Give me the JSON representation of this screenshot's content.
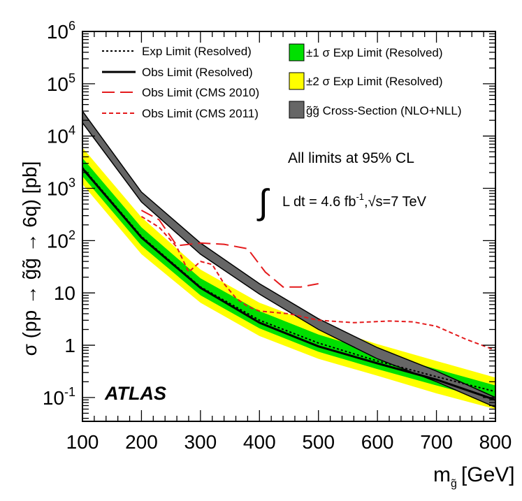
{
  "chart_data": {
    "type": "line",
    "x_label": "m",
    "x_label_sub": "g̃",
    "x_label_unit": "[GeV]",
    "y_label": "σ (pp → g̃g̃ → 6q) [pb]",
    "x_ticks": [
      "100",
      "200",
      "300",
      "400",
      "500",
      "600",
      "700",
      "800"
    ],
    "y_ticks": [
      {
        "base": "10",
        "exp": "-1",
        "value": 0.1
      },
      {
        "base": "1",
        "exp": "",
        "value": 1
      },
      {
        "base": "10",
        "exp": "",
        "value": 10
      },
      {
        "base": "10",
        "exp": "2",
        "value": 100
      },
      {
        "base": "10",
        "exp": "3",
        "value": 1000
      },
      {
        "base": "10",
        "exp": "4",
        "value": 10000
      },
      {
        "base": "10",
        "exp": "5",
        "value": 100000
      },
      {
        "base": "10",
        "exp": "6",
        "value": 1000000
      }
    ],
    "xlim": [
      100,
      800
    ],
    "ylim": [
      0.035,
      1000000
    ],
    "y_scale": "log",
    "legend_left": [
      {
        "label": "Exp Limit (Resolved)",
        "style": "dotted",
        "color": "#000000"
      },
      {
        "label": "Obs Limit (Resolved)",
        "style": "solid",
        "color": "#000000"
      },
      {
        "label": "Obs Limit (CMS 2010)",
        "style": "longdash",
        "color": "#e41a1c"
      },
      {
        "label": "Obs Limit (CMS 2011)",
        "style": "shortdash",
        "color": "#e41a1c"
      }
    ],
    "legend_right": [
      {
        "label": "±1 σ Exp Limit (Resolved)",
        "color": "#00e000"
      },
      {
        "label": "±2 σ Exp Limit (Resolved)",
        "color": "#ffff00"
      },
      {
        "label": "g̃g̃ Cross-Section (NLO+NLL)",
        "color": "#666666"
      }
    ],
    "annotations": {
      "cl": "All limits at 95% CL",
      "lumi_int": "∫",
      "lumi": "L dt = 4.6 fb",
      "lumi_exp": "-1",
      "sqrt_s_pre": ",",
      "sqrt_s": "√s=7 TeV",
      "experiment": "ATLAS"
    },
    "series": [
      {
        "name": "Exp Limit (Resolved)",
        "x": [
          100,
          200,
          300,
          400,
          500,
          600,
          700,
          800
        ],
        "y": [
          2500,
          120,
          13,
          3,
          1.1,
          0.5,
          0.25,
          0.13
        ]
      },
      {
        "name": "Obs Limit (Resolved)",
        "x": [
          100,
          200,
          300,
          400,
          500,
          600,
          700,
          800
        ],
        "y": [
          2400,
          115,
          12.5,
          2.7,
          0.95,
          0.45,
          0.22,
          0.09
        ]
      },
      {
        "name": "±1 σ Exp Limit (Resolved)",
        "x": [
          100,
          200,
          300,
          400,
          500,
          600,
          700,
          800
        ],
        "low": [
          1700,
          80,
          9,
          2.1,
          0.75,
          0.35,
          0.17,
          0.085
        ],
        "high": [
          3800,
          180,
          19,
          4.5,
          1.6,
          0.72,
          0.35,
          0.17
        ]
      },
      {
        "name": "±2 σ Exp Limit (Resolved)",
        "x": [
          100,
          200,
          300,
          400,
          500,
          600,
          700,
          800
        ],
        "low": [
          1200,
          55,
          6.5,
          1.5,
          0.55,
          0.26,
          0.12,
          0.06
        ],
        "high": [
          6000,
          280,
          28,
          6.5,
          2.4,
          1.05,
          0.5,
          0.24
        ]
      },
      {
        "name": "g̃g̃ Cross-Section (NLO+NLL)",
        "x": [
          100,
          200,
          300,
          400,
          500,
          600,
          700,
          800
        ],
        "low": [
          18000,
          550,
          55,
          9.5,
          2.0,
          0.55,
          0.2,
          0.065
        ],
        "high": [
          30000,
          850,
          90,
          15,
          3.2,
          0.9,
          0.32,
          0.1
        ]
      },
      {
        "name": "Obs Limit (CMS 2010)",
        "x": [
          200,
          230,
          260,
          300,
          340,
          380,
          410,
          440,
          470,
          500
        ],
        "y": [
          380,
          250,
          80,
          90,
          85,
          70,
          25,
          13,
          13,
          15
        ]
      },
      {
        "name": "Obs Limit (CMS 2011)",
        "x": [
          200,
          230,
          260,
          280,
          300,
          320,
          340,
          360,
          380,
          400,
          450,
          500,
          560,
          620,
          660,
          700,
          750,
          800
        ],
        "y": [
          290,
          180,
          75,
          25,
          40,
          35,
          15,
          8,
          5.5,
          4.5,
          4,
          3,
          2.7,
          2.9,
          2.8,
          2.3,
          1.3,
          0.8
        ]
      }
    ]
  }
}
